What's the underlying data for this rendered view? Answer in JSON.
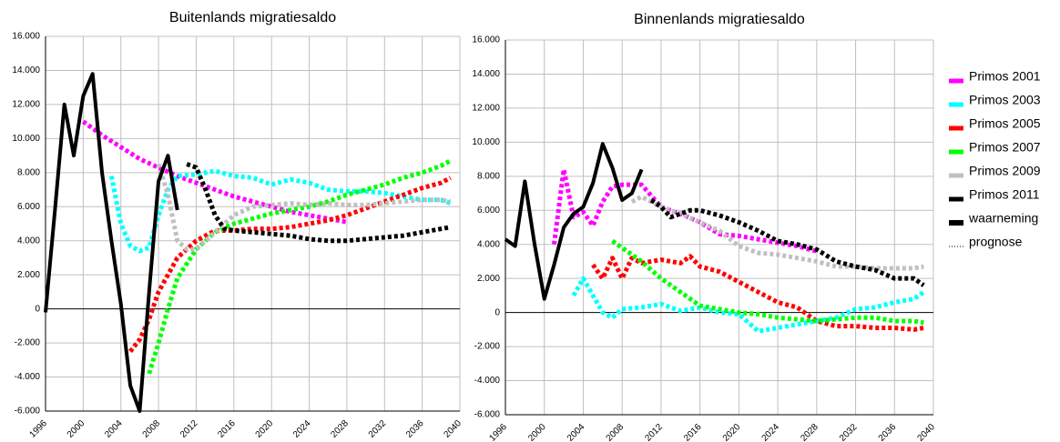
{
  "chart_data": [
    {
      "type": "line",
      "title": "Buitenlands migratiesaldo",
      "xlim": [
        1996,
        2040
      ],
      "xticks": [
        1996,
        2000,
        2004,
        2008,
        2012,
        2016,
        2020,
        2024,
        2028,
        2032,
        2036,
        2040
      ],
      "ylim": [
        -6000,
        16000
      ],
      "yticks": [
        {
          "value": -6000,
          "label": "-6.000"
        },
        {
          "value": -4000,
          "label": "-4.000"
        },
        {
          "value": -2000,
          "label": "-2.000"
        },
        0,
        {
          "value": 2000,
          "label": "2.000"
        },
        {
          "value": 4000,
          "label": "4.000"
        },
        {
          "value": 6000,
          "label": "6.000"
        },
        {
          "value": 8000,
          "label": "8.000"
        },
        {
          "value": 10000,
          "label": "10.000"
        },
        {
          "value": 12000,
          "label": "12.000"
        },
        {
          "value": 14000,
          "label": "14.000"
        },
        {
          "value": 16000,
          "label": "16.000"
        }
      ],
      "grid": true,
      "series": [
        {
          "name": "Primos 2001",
          "color": "#ff00ff",
          "style": "dotted",
          "x": [
            2000,
            2002,
            2004,
            2006,
            2008,
            2010,
            2012,
            2014,
            2016,
            2018,
            2020,
            2022,
            2024,
            2026,
            2028
          ],
          "values": [
            11000,
            10200,
            9500,
            8800,
            8300,
            7800,
            7400,
            7000,
            6600,
            6300,
            6000,
            5700,
            5500,
            5300,
            5100
          ]
        },
        {
          "name": "Primos 2003",
          "color": "#00ffff",
          "style": "dotted",
          "x": [
            2003,
            2004,
            2005,
            2006,
            2007,
            2008,
            2009,
            2010,
            2012,
            2014,
            2016,
            2018,
            2020,
            2022,
            2024,
            2026,
            2028,
            2030,
            2032,
            2034,
            2036,
            2038,
            2039
          ],
          "values": [
            7800,
            5000,
            3700,
            3400,
            3600,
            5500,
            7000,
            7800,
            7900,
            8100,
            7800,
            7700,
            7300,
            7600,
            7400,
            7000,
            6900,
            6900,
            6800,
            6600,
            6400,
            6400,
            6200
          ]
        },
        {
          "name": "Primos 2005",
          "color": "#ff0000",
          "style": "dotted",
          "x": [
            2005,
            2006,
            2007,
            2008,
            2009,
            2010,
            2012,
            2014,
            2016,
            2018,
            2020,
            2022,
            2024,
            2026,
            2028,
            2030,
            2032,
            2034,
            2036,
            2038,
            2039
          ],
          "values": [
            -2500,
            -1800,
            -600,
            1000,
            2000,
            3000,
            4000,
            4600,
            4600,
            4700,
            4700,
            4800,
            5000,
            5200,
            5500,
            5900,
            6300,
            6700,
            7100,
            7400,
            7700
          ]
        },
        {
          "name": "Primos 2007",
          "color": "#00ff00",
          "style": "dotted",
          "x": [
            2007,
            2008,
            2009,
            2010,
            2012,
            2014,
            2016,
            2018,
            2020,
            2022,
            2024,
            2026,
            2028,
            2030,
            2032,
            2034,
            2036,
            2038,
            2039
          ],
          "values": [
            -3800,
            -2000,
            0,
            1800,
            3500,
            4500,
            5000,
            5300,
            5600,
            5800,
            6000,
            6300,
            6700,
            7000,
            7300,
            7700,
            8000,
            8400,
            8700
          ]
        },
        {
          "name": "Primos 2009",
          "color": "#c0c0c0",
          "style": "dotted",
          "x": [
            2008,
            2009,
            2010,
            2011,
            2012,
            2014,
            2016,
            2018,
            2020,
            2022,
            2024,
            2026,
            2028,
            2030,
            2032,
            2034,
            2036,
            2038,
            2039
          ],
          "values": [
            8500,
            6700,
            4000,
            3500,
            3500,
            4500,
            5500,
            6000,
            6100,
            6200,
            6100,
            6200,
            6100,
            6100,
            6200,
            6300,
            6400,
            6400,
            6300
          ]
        },
        {
          "name": "Primos 2011",
          "color": "#000000",
          "style": "dotted",
          "x": [
            2011,
            2012,
            2013,
            2014,
            2015,
            2016,
            2018,
            2020,
            2022,
            2024,
            2026,
            2028,
            2030,
            2032,
            2034,
            2036,
            2038,
            2039
          ],
          "values": [
            8500,
            8300,
            7000,
            5500,
            4700,
            4600,
            4500,
            4400,
            4300,
            4100,
            4000,
            4000,
            4100,
            4200,
            4300,
            4500,
            4700,
            4800
          ]
        },
        {
          "name": "waarneming",
          "color": "#000000",
          "style": "solid",
          "x": [
            1996,
            1997,
            1998,
            1999,
            2000,
            2001,
            2002,
            2003,
            2004,
            2005,
            2006,
            2007,
            2008,
            2009,
            2010
          ],
          "values": [
            -200,
            5800,
            12000,
            9000,
            12500,
            13800,
            8000,
            4000,
            300,
            -4500,
            -6000,
            1000,
            7500,
            9000,
            5800
          ]
        }
      ]
    },
    {
      "type": "line",
      "title": "Binnenlands migratiesaldo",
      "xlim": [
        1996,
        2040
      ],
      "xticks": [
        1996,
        2000,
        2004,
        2008,
        2012,
        2016,
        2020,
        2024,
        2028,
        2032,
        2036,
        2040
      ],
      "ylim": [
        -6000,
        16000
      ],
      "yticks": [
        {
          "value": -6000,
          "label": "-6.000"
        },
        {
          "value": -4000,
          "label": "-4.000"
        },
        {
          "value": -2000,
          "label": "-2.000"
        },
        0,
        {
          "value": 2000,
          "label": "2.000"
        },
        {
          "value": 4000,
          "label": "4.000"
        },
        {
          "value": 6000,
          "label": "6.000"
        },
        {
          "value": 8000,
          "label": "8.000"
        },
        {
          "value": 10000,
          "label": "10.000"
        },
        {
          "value": 12000,
          "label": "12.000"
        },
        {
          "value": 14000,
          "label": "14.000"
        },
        {
          "value": 16000,
          "label": "16.000"
        }
      ],
      "grid": true,
      "series": [
        {
          "name": "Primos 2001",
          "color": "#ff00ff",
          "style": "dotted",
          "x": [
            2001,
            2002,
            2003,
            2004,
            2005,
            2006,
            2007,
            2008,
            2010,
            2012,
            2014,
            2016,
            2018,
            2020,
            2022,
            2024,
            2026,
            2028
          ],
          "values": [
            4000,
            8400,
            5600,
            5900,
            5100,
            6500,
            7400,
            7500,
            7500,
            6200,
            5800,
            5300,
            4600,
            4500,
            4300,
            4100,
            3900,
            3600
          ]
        },
        {
          "name": "Primos 2003",
          "color": "#00ffff",
          "style": "dotted",
          "x": [
            2003,
            2004,
            2005,
            2006,
            2007,
            2008,
            2010,
            2012,
            2014,
            2016,
            2018,
            2020,
            2022,
            2024,
            2026,
            2028,
            2030,
            2032,
            2034,
            2036,
            2038,
            2039
          ],
          "values": [
            1000,
            2000,
            1000,
            0,
            -300,
            200,
            300,
            500,
            100,
            300,
            0,
            -100,
            -1100,
            -900,
            -700,
            -500,
            -300,
            200,
            300,
            600,
            800,
            1200
          ]
        },
        {
          "name": "Primos 2005",
          "color": "#ff0000",
          "style": "dotted",
          "x": [
            2005,
            2006,
            2007,
            2008,
            2009,
            2010,
            2012,
            2014,
            2015,
            2016,
            2018,
            2020,
            2022,
            2024,
            2026,
            2028,
            2030,
            2032,
            2034,
            2036,
            2038,
            2039
          ],
          "values": [
            2800,
            2000,
            3200,
            2000,
            3200,
            2900,
            3100,
            2900,
            3300,
            2700,
            2400,
            1800,
            1200,
            600,
            300,
            -500,
            -800,
            -800,
            -900,
            -900,
            -1000,
            -900
          ]
        },
        {
          "name": "Primos 2007",
          "color": "#00ff00",
          "style": "dotted",
          "x": [
            2007,
            2008,
            2010,
            2012,
            2014,
            2016,
            2018,
            2020,
            2022,
            2024,
            2026,
            2028,
            2030,
            2032,
            2034,
            2036,
            2038,
            2039
          ],
          "values": [
            4200,
            3800,
            3000,
            2000,
            1200,
            400,
            200,
            0,
            -100,
            -300,
            -400,
            -500,
            -400,
            -300,
            -300,
            -500,
            -500,
            -600
          ]
        },
        {
          "name": "Primos 2009",
          "color": "#c0c0c0",
          "style": "dotted",
          "x": [
            2009,
            2010,
            2012,
            2014,
            2016,
            2018,
            2020,
            2022,
            2024,
            2026,
            2028,
            2030,
            2032,
            2034,
            2036,
            2038,
            2039
          ],
          "values": [
            6500,
            6800,
            6200,
            5800,
            5300,
            4800,
            3900,
            3500,
            3400,
            3200,
            3000,
            2700,
            2700,
            2600,
            2600,
            2600,
            2700
          ]
        },
        {
          "name": "Primos 2011",
          "color": "#000000",
          "style": "dotted",
          "x": [
            2011,
            2012,
            2013,
            2014,
            2015,
            2016,
            2018,
            2020,
            2022,
            2024,
            2026,
            2028,
            2030,
            2032,
            2034,
            2036,
            2038,
            2039
          ],
          "values": [
            6600,
            6200,
            5600,
            5800,
            6000,
            6000,
            5700,
            5300,
            4800,
            4200,
            4000,
            3700,
            3000,
            2700,
            2500,
            2000,
            2000,
            1600
          ]
        },
        {
          "name": "waarneming",
          "color": "#000000",
          "style": "solid",
          "x": [
            1996,
            1997,
            1998,
            1999,
            2000,
            2001,
            2002,
            2003,
            2004,
            2005,
            2006,
            2007,
            2008,
            2009,
            2010
          ],
          "values": [
            4300,
            3900,
            7700,
            4000,
            800,
            2800,
            5000,
            5800,
            6200,
            7600,
            9900,
            8500,
            6600,
            7000,
            8400
          ]
        }
      ]
    }
  ],
  "legend": {
    "position": "right",
    "prognose_label": "prognose"
  }
}
